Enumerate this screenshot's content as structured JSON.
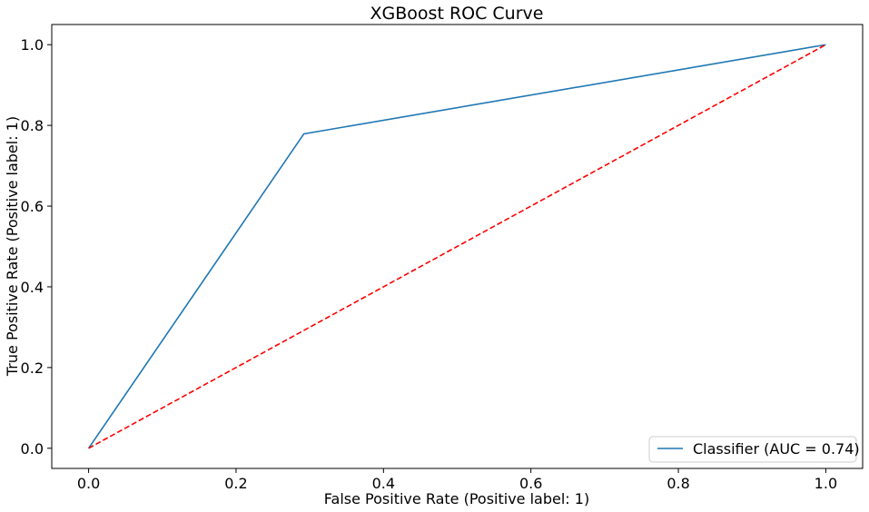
{
  "chart_data": {
    "type": "line",
    "title": "XGBoost ROC Curve",
    "xlabel": "False Positive Rate (Positive label: 1)",
    "ylabel": "True Positive Rate (Positive label: 1)",
    "xlim": [
      -0.05,
      1.05
    ],
    "ylim": [
      -0.05,
      1.05
    ],
    "x_ticks": [
      0.0,
      0.2,
      0.4,
      0.6,
      0.8,
      1.0
    ],
    "x_tick_labels": [
      "0.0",
      "0.2",
      "0.4",
      "0.6",
      "0.8",
      "1.0"
    ],
    "y_ticks": [
      0.0,
      0.2,
      0.4,
      0.6,
      0.8,
      1.0
    ],
    "y_tick_labels": [
      "0.0",
      "0.2",
      "0.4",
      "0.6",
      "0.8",
      "1.0"
    ],
    "grid": false,
    "legend_position": "lower-right",
    "series": [
      {
        "name": "Classifier (AUC = 0.74)",
        "color": "#1f77b4",
        "style": "solid",
        "x": [
          0.0,
          0.292,
          1.0
        ],
        "y": [
          0.0,
          0.779,
          1.0
        ]
      },
      {
        "color": "#ff0000",
        "style": "dashed",
        "x": [
          0.0,
          1.0
        ],
        "y": [
          0.0,
          1.0
        ]
      }
    ]
  }
}
